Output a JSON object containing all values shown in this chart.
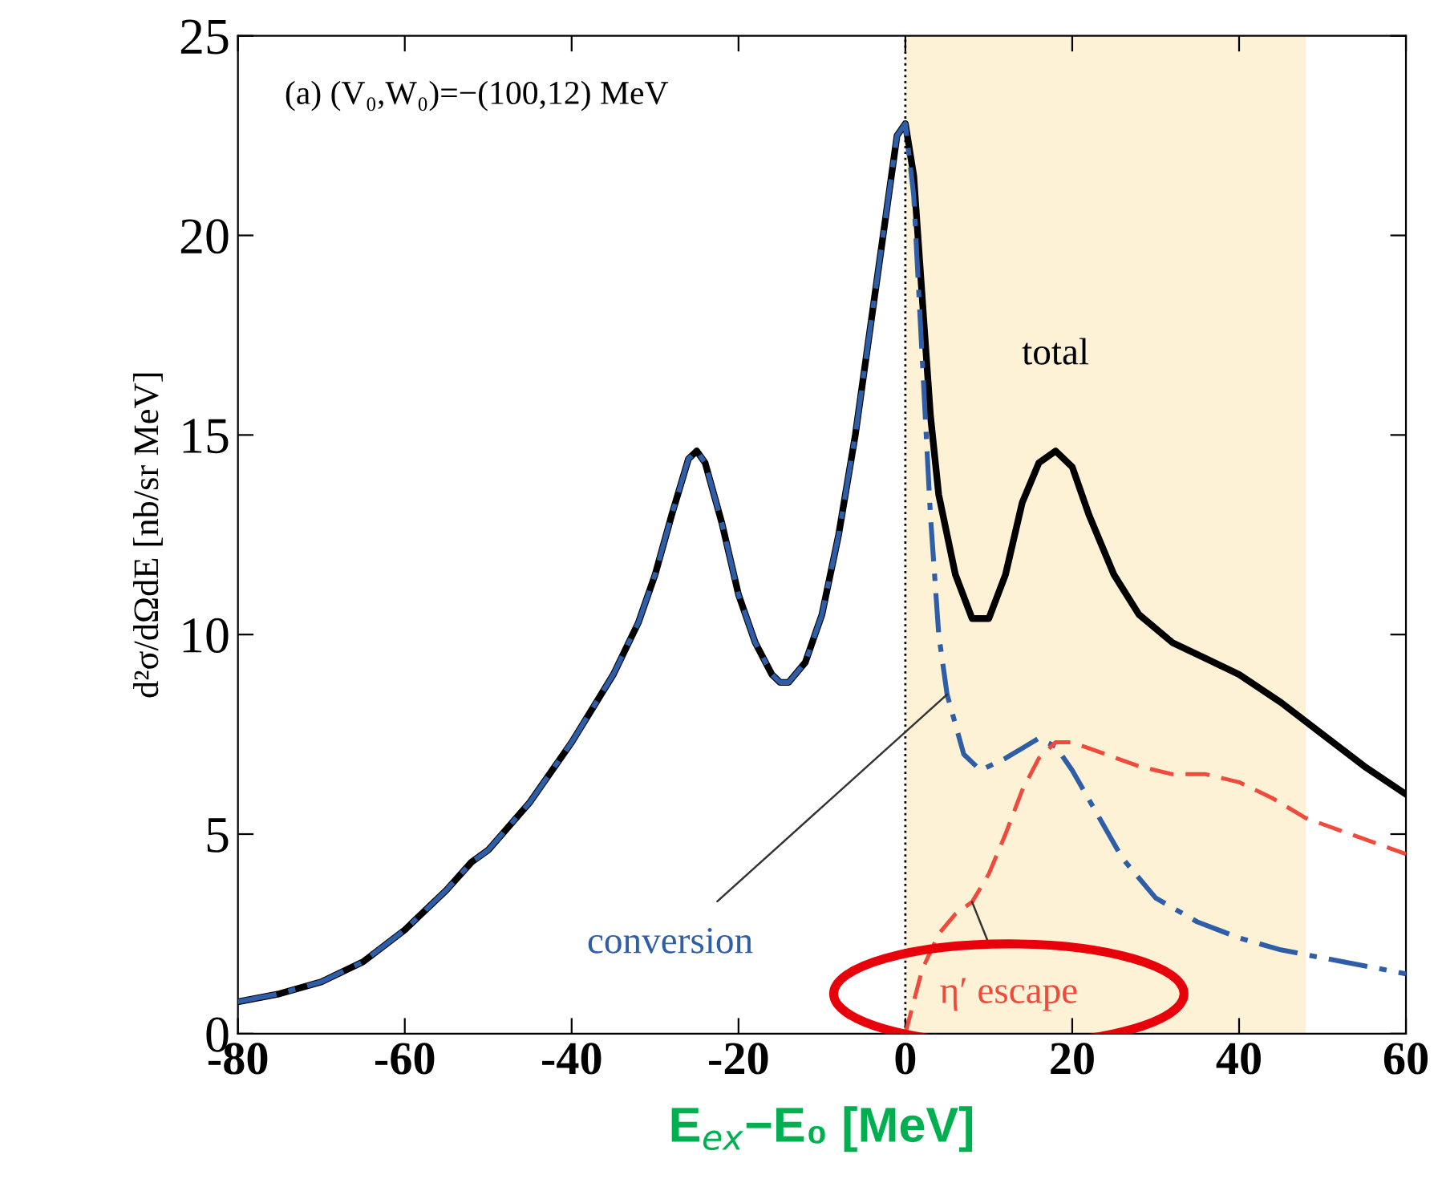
{
  "chart_data": {
    "type": "line",
    "xlabel": "E$_{ex}$−E₀ [MeV]",
    "ylabel": "d²σ/dΩdE [nb/sr MeV]",
    "annotations": [
      "(a) (V₀,W₀)=−(100,12) MeV"
    ],
    "xlim": [
      -80,
      60
    ],
    "ylim": [
      0,
      25
    ],
    "xticks": [
      {
        "value": -80,
        "label": "-80"
      },
      {
        "value": -60,
        "label": "-60"
      },
      {
        "value": -40,
        "label": "-40"
      },
      {
        "value": -20,
        "label": "-20"
      },
      0,
      20,
      40,
      60
    ],
    "yticks": [
      0,
      5,
      10,
      15,
      20,
      25
    ],
    "grid": false,
    "legend": false,
    "bands": [
      {
        "axis": "x",
        "from": 0,
        "to": 48,
        "color": "#fdf2d6"
      }
    ],
    "ref_lines": [
      {
        "axis": "x",
        "value": 0,
        "color": "#000000",
        "line_style": "dotted"
      }
    ],
    "series": [
      {
        "name": "total",
        "color": "#000000",
        "line_style": "solid",
        "x": [
          -80,
          -75,
          -70,
          -65,
          -60,
          -55,
          -52,
          -50,
          -45,
          -40,
          -35,
          -32,
          -30,
          -28,
          -26,
          -25,
          -24,
          -22,
          -20,
          -18,
          -16,
          -15,
          -14,
          -12,
          -10,
          -8,
          -6,
          -4,
          -2,
          -1,
          0,
          1,
          2,
          3,
          4,
          6,
          8,
          10,
          12,
          14,
          16,
          18,
          20,
          22,
          25,
          28,
          32,
          36,
          40,
          45,
          50,
          55,
          60
        ],
        "values": [
          0.8,
          1.0,
          1.3,
          1.8,
          2.6,
          3.6,
          4.3,
          4.6,
          5.8,
          7.3,
          9.0,
          10.3,
          11.5,
          13.0,
          14.4,
          14.6,
          14.3,
          12.8,
          11.0,
          9.8,
          9.0,
          8.8,
          8.8,
          9.3,
          10.5,
          12.5,
          15.0,
          18.0,
          21.0,
          22.5,
          22.8,
          21.5,
          18.5,
          15.5,
          13.5,
          11.5,
          10.4,
          10.4,
          11.5,
          13.3,
          14.3,
          14.6,
          14.2,
          13.0,
          11.5,
          10.5,
          9.8,
          9.4,
          9.0,
          8.3,
          7.5,
          6.7,
          6.0
        ]
      },
      {
        "name": "conversion",
        "color": "#2e5ea8",
        "line_style": "dashdot",
        "x": [
          -80,
          -75,
          -70,
          -65,
          -60,
          -55,
          -52,
          -50,
          -45,
          -40,
          -35,
          -32,
          -30,
          -28,
          -26,
          -25,
          -24,
          -22,
          -20,
          -18,
          -16,
          -15,
          -14,
          -12,
          -10,
          -8,
          -6,
          -4,
          -2,
          -1,
          0,
          1,
          2,
          3,
          4,
          5,
          7,
          9,
          12,
          16,
          18,
          20,
          23,
          26,
          30,
          35,
          40,
          45,
          50,
          55,
          60
        ],
        "values": [
          0.8,
          1.0,
          1.3,
          1.8,
          2.6,
          3.6,
          4.3,
          4.6,
          5.8,
          7.3,
          9.0,
          10.3,
          11.5,
          13.0,
          14.4,
          14.6,
          14.3,
          12.8,
          11.0,
          9.8,
          9.0,
          8.8,
          8.8,
          9.3,
          10.5,
          12.5,
          15.0,
          18.0,
          21.0,
          22.5,
          22.8,
          21.0,
          17.0,
          13.0,
          10.0,
          8.5,
          7.0,
          6.6,
          6.9,
          7.4,
          7.2,
          6.6,
          5.5,
          4.4,
          3.4,
          2.8,
          2.4,
          2.1,
          1.9,
          1.7,
          1.5
        ]
      },
      {
        "name": "η′ escape",
        "color": "#f04a3c",
        "line_style": "dashed",
        "x": [
          0,
          1,
          2,
          4,
          6,
          8,
          10,
          12,
          14,
          16,
          18,
          20,
          24,
          28,
          32,
          36,
          40,
          44,
          48,
          52,
          56,
          60
        ],
        "values": [
          0,
          0.8,
          1.6,
          2.5,
          3.0,
          3.3,
          4.0,
          5.0,
          6.1,
          6.9,
          7.3,
          7.3,
          7.0,
          6.7,
          6.5,
          6.5,
          6.3,
          5.9,
          5.4,
          5.1,
          4.8,
          4.5
        ]
      }
    ]
  }
}
